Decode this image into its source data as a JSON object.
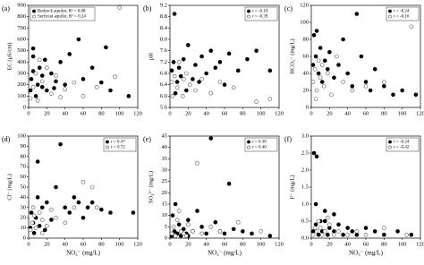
{
  "chart_data": [
    {
      "type": "scatter",
      "panel_label": "(a)",
      "y_label": "EC (μS/cm)",
      "legend": "upper left",
      "xlim": [
        0,
        120
      ],
      "xticks": [
        0,
        20,
        40,
        60,
        80,
        100,
        120
      ],
      "ylim": [
        0,
        900
      ],
      "yticks": [
        0,
        100,
        200,
        300,
        400,
        500,
        600,
        700,
        800,
        900
      ],
      "series": [
        {
          "name": "Bedrock aquifer, R² = 0.08",
          "color": "#000000",
          "filled": true,
          "x": [
            2,
            3,
            5,
            5,
            8,
            10,
            12,
            15,
            18,
            20,
            25,
            30,
            35,
            40,
            45,
            55,
            60,
            70,
            80,
            85,
            90,
            110,
            5,
            15,
            28
          ],
          "values": [
            150,
            250,
            320,
            520,
            100,
            200,
            350,
            180,
            420,
            150,
            300,
            230,
            400,
            200,
            470,
            600,
            250,
            350,
            220,
            530,
            150,
            100,
            450,
            280,
            170
          ]
        },
        {
          "name": "Surficial aquifer, R² = 0.24",
          "color": "#555555",
          "filled": false,
          "x": [
            2,
            5,
            8,
            10,
            15,
            20,
            25,
            30,
            40,
            50,
            60,
            75,
            95,
            100,
            12,
            35
          ],
          "values": [
            80,
            180,
            300,
            60,
            230,
            350,
            120,
            280,
            160,
            220,
            100,
            180,
            270,
            880,
            420,
            90
          ]
        }
      ]
    },
    {
      "type": "scatter",
      "panel_label": "(b)",
      "y_label": "pH",
      "legend": "upper right",
      "xlim": [
        0,
        120
      ],
      "xticks": [
        0,
        20,
        40,
        60,
        80,
        100,
        120
      ],
      "ylim": [
        5.6,
        9.2
      ],
      "yticks": [
        5.6,
        {
          "value": 6,
          "label": "6.0"
        },
        6.4,
        6.8,
        7.2,
        7.6,
        {
          "value": 8,
          "label": "8.0"
        },
        8.4,
        8.8,
        9.2
      ],
      "series": [
        {
          "name": "r = -0.10",
          "color": "#000000",
          "filled": true,
          "x": [
            2,
            4,
            5,
            8,
            10,
            12,
            15,
            18,
            20,
            25,
            28,
            32,
            35,
            40,
            45,
            50,
            55,
            60,
            65,
            75,
            85,
            95,
            110,
            6
          ],
          "values": [
            6.9,
            7.2,
            8.9,
            6.5,
            7.0,
            6.7,
            7.3,
            6.2,
            7.8,
            6.6,
            7.1,
            6.5,
            7.4,
            6.8,
            7.6,
            7.0,
            7.2,
            6.4,
            7.5,
            6.9,
            7.3,
            7.6,
            6.9,
            6.1
          ]
        },
        {
          "name": "r = -0.39",
          "color": "#555555",
          "filled": false,
          "x": [
            2,
            3,
            5,
            8,
            10,
            14,
            18,
            22,
            28,
            35,
            45,
            55,
            70,
            95,
            110,
            15
          ],
          "values": [
            6.5,
            6.0,
            6.7,
            6.3,
            7.2,
            6.0,
            6.8,
            6.4,
            6.2,
            6.6,
            6.1,
            6.5,
            6.3,
            5.8,
            5.9,
            6.6
          ]
        }
      ]
    },
    {
      "type": "scatter",
      "panel_label": "(c)",
      "y_label": "HCO₃⁻ (mg/L)",
      "legend": "upper right",
      "xlim": [
        0,
        120
      ],
      "xticks": [
        0,
        20,
        40,
        60,
        80,
        100,
        120
      ],
      "ylim": [
        0,
        120
      ],
      "yticks": [
        0,
        20,
        40,
        60,
        80,
        100,
        120
      ],
      "series": [
        {
          "name": "r = -0.24",
          "color": "#000000",
          "filled": true,
          "x": [
            2,
            3,
            5,
            8,
            10,
            12,
            15,
            18,
            20,
            25,
            30,
            35,
            40,
            45,
            50,
            55,
            60,
            65,
            70,
            80,
            90,
            100,
            115,
            6
          ],
          "values": [
            50,
            85,
            60,
            40,
            70,
            30,
            55,
            45,
            65,
            35,
            50,
            80,
            40,
            25,
            110,
            60,
            30,
            20,
            45,
            25,
            15,
            20,
            15,
            90
          ]
        },
        {
          "name": "r = -0.16",
          "color": "#555555",
          "filled": false,
          "x": [
            2,
            4,
            6,
            8,
            10,
            14,
            18,
            22,
            28,
            35,
            45,
            60,
            80,
            110,
            5,
            12
          ],
          "values": [
            30,
            45,
            20,
            55,
            35,
            25,
            40,
            15,
            60,
            30,
            20,
            25,
            30,
            95,
            10,
            50
          ]
        }
      ]
    },
    {
      "type": "scatter",
      "panel_label": "(d)",
      "y_label": "Cl⁻ (mg/L)",
      "x_label": "NO₃⁻ (mg/L)",
      "legend": "upper right",
      "xlim": [
        0,
        120
      ],
      "xticks": [
        0,
        20,
        40,
        60,
        80,
        100,
        120
      ],
      "ylim": [
        0,
        100
      ],
      "yticks": [
        0,
        10,
        20,
        30,
        40,
        50,
        60,
        70,
        80,
        90,
        100
      ],
      "series": [
        {
          "name": "r = 0.47",
          "color": "#000000",
          "filled": true,
          "x": [
            2,
            3,
            5,
            8,
            10,
            12,
            15,
            18,
            20,
            25,
            30,
            35,
            40,
            45,
            50,
            55,
            60,
            65,
            70,
            80,
            90,
            115,
            6,
            10
          ],
          "values": [
            10,
            25,
            15,
            20,
            40,
            12,
            30,
            8,
            35,
            18,
            50,
            92,
            30,
            25,
            40,
            35,
            20,
            30,
            35,
            28,
            25,
            25,
            5,
            75
          ]
        },
        {
          "name": "r = 0.72",
          "color": "#555555",
          "filled": false,
          "x": [
            2,
            4,
            6,
            8,
            12,
            15,
            20,
            25,
            30,
            40,
            50,
            60,
            70,
            75,
            5,
            15
          ],
          "values": [
            8,
            15,
            22,
            10,
            25,
            18,
            12,
            28,
            20,
            15,
            30,
            55,
            50,
            30,
            30,
            5
          ]
        }
      ]
    },
    {
      "type": "scatter",
      "panel_label": "(e)",
      "y_label": "SO₄²⁻ (mg/L)",
      "x_label": "NO₃⁻ (mg/L)",
      "legend": "upper right",
      "xlim": [
        0,
        120
      ],
      "xticks": [
        0,
        20,
        40,
        60,
        80,
        100,
        120
      ],
      "ylim": [
        0,
        45
      ],
      "yticks": [
        0,
        5,
        10,
        15,
        20,
        25,
        30,
        35,
        40,
        45
      ],
      "series": [
        {
          "name": "r = 0.30",
          "color": "#000000",
          "filled": true,
          "x": [
            2,
            3,
            5,
            8,
            10,
            12,
            15,
            18,
            20,
            25,
            30,
            35,
            40,
            45,
            50,
            55,
            60,
            65,
            70,
            80,
            90,
            110,
            6,
            20
          ],
          "values": [
            1,
            10,
            3,
            2,
            6,
            1,
            4,
            2,
            8,
            3,
            12,
            5,
            2,
            44,
            7,
            3,
            2,
            24,
            4,
            3,
            2,
            1,
            15,
            1
          ]
        },
        {
          "name": "r = 0.40",
          "color": "#555555",
          "filled": false,
          "x": [
            2,
            4,
            6,
            8,
            12,
            15,
            20,
            25,
            30,
            35,
            45,
            55,
            75,
            100,
            10,
            18
          ],
          "values": [
            2,
            5,
            1,
            8,
            3,
            2,
            6,
            3,
            33,
            2,
            5,
            3,
            7,
            3,
            12,
            1
          ]
        }
      ]
    },
    {
      "type": "scatter",
      "panel_label": "(f)",
      "y_label": "F⁻ (mg/L)",
      "x_label": "NO₃⁻ (mg/L)",
      "legend": "upper right",
      "xlim": [
        0,
        120
      ],
      "xticks": [
        0,
        20,
        40,
        60,
        80,
        100,
        120
      ],
      "ylim": [
        0,
        3
      ],
      "yticks": [
        {
          "value": 0,
          "label": "0.0"
        },
        0.5,
        {
          "value": 1,
          "label": "1.0"
        },
        1.5,
        {
          "value": 2,
          "label": "2.0"
        },
        2.5,
        {
          "value": 3,
          "label": "3.0"
        }
      ],
      "series": [
        {
          "name": "r = -0.24",
          "color": "#000000",
          "filled": true,
          "x": [
            2,
            3,
            5,
            6,
            8,
            10,
            12,
            15,
            18,
            20,
            25,
            30,
            35,
            40,
            45,
            50,
            60,
            70,
            80,
            95,
            110,
            5,
            15,
            25
          ],
          "values": [
            0.2,
            2.5,
            0.4,
            2.4,
            0.1,
            0.5,
            0.2,
            0.8,
            0.1,
            0.3,
            0.2,
            0.4,
            0.1,
            0.3,
            0.2,
            0.1,
            0.3,
            0.2,
            0.1,
            0.2,
            0.1,
            1.0,
            0.5,
            0.7
          ]
        },
        {
          "name": "r = -0.42",
          "color": "#555555",
          "filled": false,
          "x": [
            2,
            4,
            6,
            8,
            12,
            15,
            20,
            25,
            30,
            40,
            50,
            60,
            80,
            105,
            10,
            18
          ],
          "values": [
            0.1,
            0.3,
            0.2,
            0.5,
            0.1,
            0.2,
            0.4,
            0.1,
            0.2,
            0.1,
            0.2,
            0.1,
            0.3,
            0.1,
            0.3,
            0.6
          ]
        }
      ]
    }
  ]
}
